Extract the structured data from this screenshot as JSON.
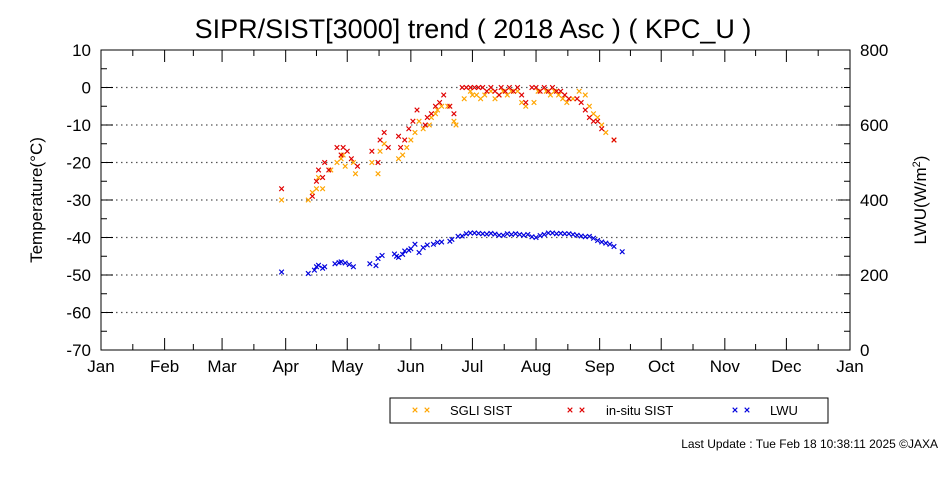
{
  "footer": "Last Update : Tue Feb 18 10:38:11 2025 ©JAXA",
  "chart_data": {
    "type": "scatter",
    "title": "SIPR/SIST[3000] trend ( 2018 Asc ) ( KPC_U )",
    "ylabel": "Temperature(°C)",
    "y2label_main": "LWU(W/m",
    "y2label_sup": "2",
    "y2label_end": ")",
    "ylim": [
      -70,
      10
    ],
    "y2lim": [
      0,
      800
    ],
    "yticks": [
      "10",
      "0",
      "-10",
      "-20",
      "-30",
      "-40",
      "-50",
      "-60",
      "-70"
    ],
    "y2ticks": [
      "800",
      "600",
      "400",
      "200",
      "0"
    ],
    "xticks": [
      "Jan",
      "Feb",
      "Mar",
      "Apr",
      "May",
      "Jun",
      "Jul",
      "Aug",
      "Sep",
      "Oct",
      "Nov",
      "Dec",
      "Jan"
    ],
    "grid": "horizontal dotted",
    "legend_position": "bottom",
    "colors": {
      "sgli": "#ffa500",
      "insitu": "#e00000",
      "lwu": "#0000dd",
      "grid": "#555555"
    },
    "series": [
      {
        "name": "SGLI SIST",
        "axis": "left",
        "points": [
          [
            88,
            -30
          ],
          [
            101,
            -30
          ],
          [
            103,
            -28
          ],
          [
            105,
            -27
          ],
          [
            106,
            -24
          ],
          [
            108,
            -27
          ],
          [
            112,
            -22
          ],
          [
            115,
            -20
          ],
          [
            117,
            -19
          ],
          [
            118,
            -18
          ],
          [
            119,
            -21
          ],
          [
            123,
            -20
          ],
          [
            124,
            -23
          ],
          [
            132,
            -20
          ],
          [
            135,
            -23
          ],
          [
            136,
            -17
          ],
          [
            138,
            -15
          ],
          [
            145,
            -19
          ],
          [
            147,
            -18
          ],
          [
            149,
            -16
          ],
          [
            151,
            -14
          ],
          [
            153,
            -12
          ],
          [
            155,
            -9
          ],
          [
            157,
            -11
          ],
          [
            160,
            -10
          ],
          [
            161,
            -8
          ],
          [
            163,
            -7
          ],
          [
            164,
            -6
          ],
          [
            166,
            -5
          ],
          [
            169,
            -5
          ],
          [
            172,
            -9
          ],
          [
            173,
            -10
          ],
          [
            177,
            -3
          ],
          [
            180,
            -1
          ],
          [
            181,
            -2
          ],
          [
            183,
            -2
          ],
          [
            185,
            -3
          ],
          [
            187,
            -2
          ],
          [
            190,
            -1
          ],
          [
            192,
            -3
          ],
          [
            194,
            -2
          ],
          [
            196,
            -1
          ],
          [
            198,
            -2
          ],
          [
            200,
            -1
          ],
          [
            203,
            -1
          ],
          [
            205,
            -4
          ],
          [
            207,
            -5
          ],
          [
            211,
            -4
          ],
          [
            213,
            -1
          ],
          [
            217,
            -1
          ],
          [
            219,
            -2
          ],
          [
            221,
            -1
          ],
          [
            223,
            -2
          ],
          [
            225,
            -3
          ],
          [
            227,
            -4
          ],
          [
            230,
            -3
          ],
          [
            233,
            -1
          ],
          [
            236,
            -2
          ],
          [
            238,
            -5
          ],
          [
            240,
            -7
          ],
          [
            242,
            -8
          ],
          [
            244,
            -10
          ],
          [
            246,
            -12
          ],
          [
            250,
            -14
          ]
        ]
      },
      {
        "name": "in-situ SIST",
        "axis": "left",
        "points": [
          [
            88,
            -27
          ],
          [
            103,
            -29
          ],
          [
            105,
            -25
          ],
          [
            106,
            -22
          ],
          [
            108,
            -24
          ],
          [
            109,
            -20
          ],
          [
            111,
            -22
          ],
          [
            115,
            -16
          ],
          [
            117,
            -18
          ],
          [
            118,
            -16
          ],
          [
            120,
            -17
          ],
          [
            122,
            -19
          ],
          [
            125,
            -21
          ],
          [
            132,
            -17
          ],
          [
            135,
            -20
          ],
          [
            136,
            -14
          ],
          [
            138,
            -12
          ],
          [
            140,
            -16
          ],
          [
            145,
            -13
          ],
          [
            146,
            -16
          ],
          [
            148,
            -14
          ],
          [
            150,
            -11
          ],
          [
            152,
            -9
          ],
          [
            154,
            -6
          ],
          [
            158,
            -10
          ],
          [
            159,
            -8
          ],
          [
            161,
            -7
          ],
          [
            163,
            -5
          ],
          [
            165,
            -4
          ],
          [
            167,
            -2
          ],
          [
            170,
            -5
          ],
          [
            172,
            -7
          ],
          [
            176,
            0
          ],
          [
            178,
            0
          ],
          [
            180,
            0
          ],
          [
            182,
            0
          ],
          [
            184,
            0
          ],
          [
            186,
            0
          ],
          [
            188,
            -1
          ],
          [
            190,
            0
          ],
          [
            192,
            -1
          ],
          [
            194,
            -2
          ],
          [
            195,
            0
          ],
          [
            197,
            -1
          ],
          [
            199,
            0
          ],
          [
            201,
            -1
          ],
          [
            203,
            0
          ],
          [
            205,
            -2
          ],
          [
            207,
            -4
          ],
          [
            210,
            0
          ],
          [
            212,
            0
          ],
          [
            214,
            -1
          ],
          [
            216,
            0
          ],
          [
            218,
            -1
          ],
          [
            220,
            0
          ],
          [
            222,
            -1
          ],
          [
            224,
            -1
          ],
          [
            226,
            -2
          ],
          [
            228,
            -3
          ],
          [
            232,
            -3
          ],
          [
            234,
            -4
          ],
          [
            236,
            -6
          ],
          [
            238,
            -8
          ],
          [
            240,
            -9
          ],
          [
            242,
            -9
          ],
          [
            244,
            -11
          ],
          [
            250,
            -14
          ]
        ]
      },
      {
        "name": "LWU",
        "axis": "right",
        "points": [
          [
            88,
            208
          ],
          [
            101,
            204
          ],
          [
            104,
            213
          ],
          [
            105,
            222
          ],
          [
            106,
            226
          ],
          [
            108,
            218
          ],
          [
            109,
            222
          ],
          [
            114,
            230
          ],
          [
            116,
            233
          ],
          [
            117,
            235
          ],
          [
            119,
            232
          ],
          [
            121,
            228
          ],
          [
            123,
            222
          ],
          [
            131,
            230
          ],
          [
            134,
            225
          ],
          [
            135,
            244
          ],
          [
            137,
            252
          ],
          [
            143,
            256
          ],
          [
            144,
            250
          ],
          [
            145,
            247
          ],
          [
            147,
            255
          ],
          [
            148,
            264
          ],
          [
            150,
            266
          ],
          [
            151,
            270
          ],
          [
            153,
            282
          ],
          [
            155,
            260
          ],
          [
            157,
            273
          ],
          [
            159,
            280
          ],
          [
            162,
            282
          ],
          [
            164,
            287
          ],
          [
            166,
            288
          ],
          [
            170,
            290
          ],
          [
            171,
            295
          ],
          [
            174,
            303
          ],
          [
            176,
            304
          ],
          [
            178,
            310
          ],
          [
            180,
            312
          ],
          [
            182,
            312
          ],
          [
            184,
            311
          ],
          [
            186,
            310
          ],
          [
            188,
            309
          ],
          [
            190,
            311
          ],
          [
            192,
            309
          ],
          [
            194,
            306
          ],
          [
            196,
            306
          ],
          [
            198,
            310
          ],
          [
            200,
            308
          ],
          [
            202,
            310
          ],
          [
            204,
            308
          ],
          [
            206,
            306
          ],
          [
            208,
            308
          ],
          [
            210,
            302
          ],
          [
            212,
            300
          ],
          [
            214,
            305
          ],
          [
            216,
            308
          ],
          [
            218,
            312
          ],
          [
            220,
            312
          ],
          [
            222,
            310
          ],
          [
            224,
            311
          ],
          [
            226,
            310
          ],
          [
            228,
            310
          ],
          [
            230,
            308
          ],
          [
            232,
            306
          ],
          [
            234,
            304
          ],
          [
            236,
            302
          ],
          [
            238,
            303
          ],
          [
            240,
            298
          ],
          [
            242,
            292
          ],
          [
            244,
            288
          ],
          [
            246,
            285
          ],
          [
            248,
            282
          ],
          [
            250,
            276
          ],
          [
            254,
            262
          ]
        ]
      }
    ]
  }
}
